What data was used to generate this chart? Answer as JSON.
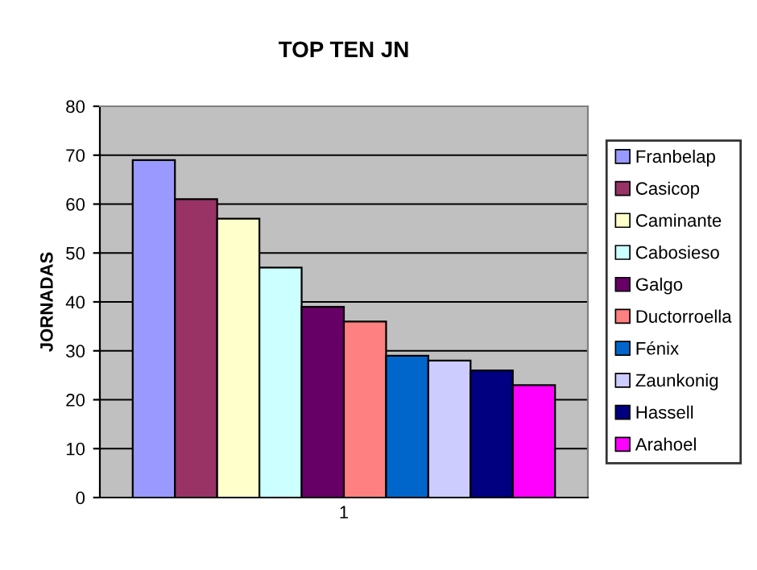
{
  "chart_data": {
    "type": "bar",
    "title": "TOP TEN JN",
    "ylabel": "JORNADAS",
    "categories": [
      "1"
    ],
    "series": [
      {
        "name": "Franbelap",
        "color": "#9999ff",
        "values": [
          69
        ]
      },
      {
        "name": "Casicop",
        "color": "#993366",
        "values": [
          61
        ]
      },
      {
        "name": "Caminante",
        "color": "#ffffcc",
        "values": [
          57
        ]
      },
      {
        "name": "Cabosieso",
        "color": "#ccffff",
        "values": [
          47
        ]
      },
      {
        "name": "Galgo",
        "color": "#660066",
        "values": [
          39
        ]
      },
      {
        "name": "Ductorroella",
        "color": "#ff8080",
        "values": [
          36
        ]
      },
      {
        "name": "Fénix",
        "color": "#0066cc",
        "values": [
          29
        ]
      },
      {
        "name": "Zaunkonig",
        "color": "#ccccff",
        "values": [
          28
        ]
      },
      {
        "name": "Hassell",
        "color": "#000080",
        "values": [
          26
        ]
      },
      {
        "name": "Arahoel",
        "color": "#ff00ff",
        "values": [
          23
        ]
      }
    ],
    "ylim": [
      0,
      80
    ],
    "yticks": [
      0,
      10,
      20,
      30,
      40,
      50,
      60,
      70,
      80
    ],
    "grid": "y",
    "legend": "right"
  }
}
